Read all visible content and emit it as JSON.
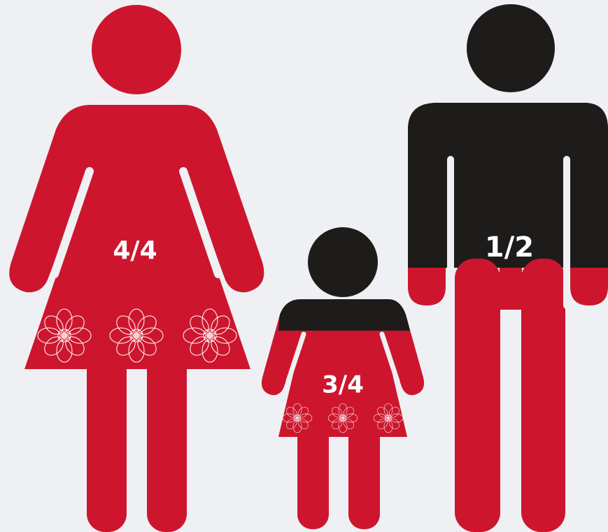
{
  "figures": [
    {
      "label": "4/4"
    },
    {
      "label": "3/4"
    },
    {
      "label": "1/2"
    }
  ]
}
